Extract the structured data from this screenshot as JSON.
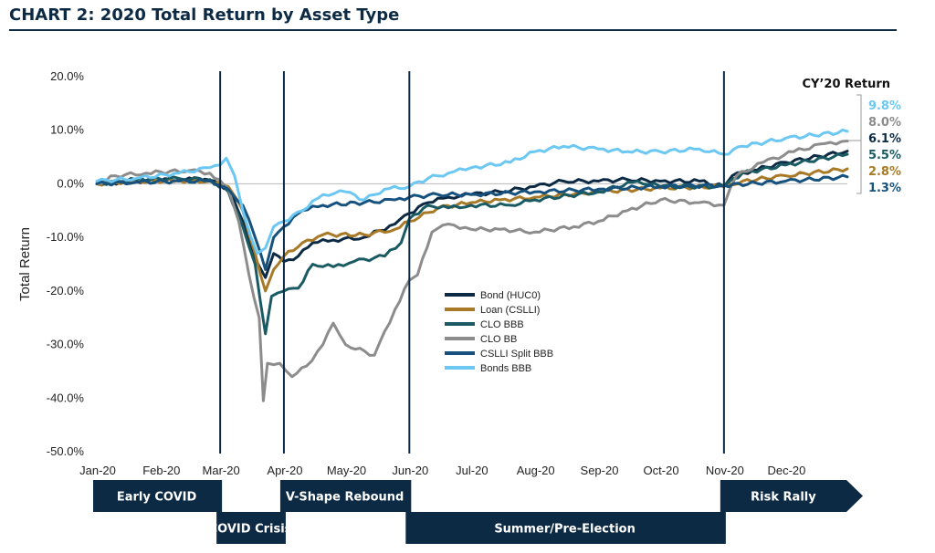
{
  "title": "CHART 2: 2020 Total Return by Asset Type",
  "chart_data": {
    "type": "line",
    "ylabel": "Total Return",
    "ylim": [
      -50,
      20
    ],
    "y_ticks": [
      "20.0%",
      "10.0%",
      "0.0%",
      "-10.0%",
      "-20.0%",
      "-30.0%",
      "-40.0%",
      "-50.0%"
    ],
    "x_ticks": [
      "Jan-20",
      "Feb-20",
      "Mar-20",
      "Apr-20",
      "May-20",
      "Jun-20",
      "Jul-20",
      "Aug-20",
      "Sep-20",
      "Oct-20",
      "Nov-20",
      "Dec-20"
    ],
    "x_label_dates": [
      "2020-01-01",
      "2020-02-01",
      "2020-03-01",
      "2020-04-01",
      "2020-05-01",
      "2020-06-01",
      "2020-07-01",
      "2020-08-01",
      "2020-09-01",
      "2020-10-01",
      "2020-11-01",
      "2020-12-01"
    ],
    "xlim": [
      "2020-01-01",
      "2020-12-31"
    ],
    "phase_dividers": [
      "2020-03-01",
      "2020-04-01",
      "2020-06-01",
      "2020-11-01"
    ],
    "legend_position": "center",
    "cy_header": "CY’20 Return",
    "series": [
      {
        "name": "Bond (HUC0)",
        "color": "#0d2a44",
        "cy_return": "6.1%",
        "points": [
          [
            "2020-01-01",
            0.0
          ],
          [
            "2020-01-20",
            0.5
          ],
          [
            "2020-02-10",
            0.8
          ],
          [
            "2020-02-25",
            0.7
          ],
          [
            "2020-03-05",
            -1.0
          ],
          [
            "2020-03-12",
            -7.0
          ],
          [
            "2020-03-18",
            -14.0
          ],
          [
            "2020-03-23",
            -17.5
          ],
          [
            "2020-03-27",
            -13.0
          ],
          [
            "2020-04-01",
            -14.5
          ],
          [
            "2020-04-08",
            -13.5
          ],
          [
            "2020-04-15",
            -11.0
          ],
          [
            "2020-04-25",
            -10.5
          ],
          [
            "2020-05-10",
            -10.0
          ],
          [
            "2020-05-25",
            -7.5
          ],
          [
            "2020-06-01",
            -5.5
          ],
          [
            "2020-06-10",
            -3.5
          ],
          [
            "2020-06-20",
            -2.5
          ],
          [
            "2020-07-01",
            -2.0
          ],
          [
            "2020-07-15",
            -1.5
          ],
          [
            "2020-08-01",
            -0.5
          ],
          [
            "2020-08-15",
            0.5
          ],
          [
            "2020-09-01",
            0.5
          ],
          [
            "2020-09-15",
            0.8
          ],
          [
            "2020-10-01",
            0.5
          ],
          [
            "2020-10-20",
            0.5
          ],
          [
            "2020-11-01",
            -0.5
          ],
          [
            "2020-11-05",
            1.5
          ],
          [
            "2020-11-15",
            2.5
          ],
          [
            "2020-12-01",
            4.0
          ],
          [
            "2020-12-31",
            6.1
          ]
        ]
      },
      {
        "name": "Loan (CSLLI)",
        "color": "#a87a28",
        "cy_return": "2.8%",
        "points": [
          [
            "2020-01-01",
            0.0
          ],
          [
            "2020-01-20",
            0.5
          ],
          [
            "2020-02-10",
            0.6
          ],
          [
            "2020-02-25",
            0.5
          ],
          [
            "2020-03-05",
            -0.5
          ],
          [
            "2020-03-12",
            -5.0
          ],
          [
            "2020-03-18",
            -13.0
          ],
          [
            "2020-03-23",
            -20.0
          ],
          [
            "2020-03-27",
            -16.0
          ],
          [
            "2020-04-01",
            -13.5
          ],
          [
            "2020-04-10",
            -11.0
          ],
          [
            "2020-04-20",
            -9.5
          ],
          [
            "2020-05-10",
            -9.5
          ],
          [
            "2020-05-25",
            -8.5
          ],
          [
            "2020-06-01",
            -7.0
          ],
          [
            "2020-06-15",
            -4.5
          ],
          [
            "2020-07-01",
            -3.5
          ],
          [
            "2020-07-15",
            -3.0
          ],
          [
            "2020-08-01",
            -2.5
          ],
          [
            "2020-09-01",
            -1.5
          ],
          [
            "2020-10-01",
            -0.8
          ],
          [
            "2020-11-01",
            -0.5
          ],
          [
            "2020-11-10",
            0.5
          ],
          [
            "2020-12-01",
            1.5
          ],
          [
            "2020-12-31",
            2.8
          ]
        ]
      },
      {
        "name": "CLO BBB",
        "color": "#1a5b63",
        "cy_return": "5.5%",
        "points": [
          [
            "2020-01-01",
            0.0
          ],
          [
            "2020-01-20",
            0.8
          ],
          [
            "2020-02-10",
            1.0
          ],
          [
            "2020-02-25",
            0.8
          ],
          [
            "2020-03-05",
            -1.5
          ],
          [
            "2020-03-12",
            -8.0
          ],
          [
            "2020-03-18",
            -15.0
          ],
          [
            "2020-03-23",
            -28.0
          ],
          [
            "2020-03-26",
            -21.0
          ],
          [
            "2020-04-01",
            -20.0
          ],
          [
            "2020-04-08",
            -19.5
          ],
          [
            "2020-04-15",
            -15.0
          ],
          [
            "2020-04-25",
            -15.5
          ],
          [
            "2020-05-05",
            -14.5
          ],
          [
            "2020-05-20",
            -13.5
          ],
          [
            "2020-05-28",
            -11.0
          ],
          [
            "2020-06-01",
            -6.5
          ],
          [
            "2020-06-10",
            -4.0
          ],
          [
            "2020-06-20",
            -4.5
          ],
          [
            "2020-07-01",
            -4.0
          ],
          [
            "2020-07-20",
            -4.0
          ],
          [
            "2020-08-01",
            -3.0
          ],
          [
            "2020-09-01",
            -1.5
          ],
          [
            "2020-09-20",
            0.5
          ],
          [
            "2020-10-01",
            -0.5
          ],
          [
            "2020-11-01",
            -0.5
          ],
          [
            "2020-11-10",
            2.0
          ],
          [
            "2020-12-01",
            3.5
          ],
          [
            "2020-12-31",
            5.5
          ]
        ]
      },
      {
        "name": "CLO BB",
        "color": "#8c8c8c",
        "cy_return": "8.0%",
        "points": [
          [
            "2020-01-01",
            0.0
          ],
          [
            "2020-01-10",
            1.5
          ],
          [
            "2020-01-25",
            2.0
          ],
          [
            "2020-02-15",
            2.5
          ],
          [
            "2020-02-25",
            2.0
          ],
          [
            "2020-03-05",
            -1.0
          ],
          [
            "2020-03-10",
            -7.0
          ],
          [
            "2020-03-15",
            -17.0
          ],
          [
            "2020-03-20",
            -25.0
          ],
          [
            "2020-03-22",
            -40.5
          ],
          [
            "2020-03-24",
            -33.5
          ],
          [
            "2020-03-30",
            -33.5
          ],
          [
            "2020-04-05",
            -36.0
          ],
          [
            "2020-04-12",
            -34.0
          ],
          [
            "2020-04-20",
            -30.0
          ],
          [
            "2020-04-25",
            -26.0
          ],
          [
            "2020-05-01",
            -30.0
          ],
          [
            "2020-05-15",
            -32.0
          ],
          [
            "2020-05-25",
            -23.5
          ],
          [
            "2020-06-01",
            -18.0
          ],
          [
            "2020-06-05",
            -17.0
          ],
          [
            "2020-06-12",
            -9.0
          ],
          [
            "2020-06-20",
            -7.5
          ],
          [
            "2020-07-01",
            -8.5
          ],
          [
            "2020-07-15",
            -8.5
          ],
          [
            "2020-08-01",
            -9.0
          ],
          [
            "2020-08-20",
            -8.0
          ],
          [
            "2020-09-01",
            -7.0
          ],
          [
            "2020-09-15",
            -5.0
          ],
          [
            "2020-10-01",
            -3.0
          ],
          [
            "2020-10-20",
            -3.5
          ],
          [
            "2020-11-01",
            -4.0
          ],
          [
            "2020-11-07",
            1.5
          ],
          [
            "2020-11-20",
            4.0
          ],
          [
            "2020-12-05",
            6.0
          ],
          [
            "2020-12-20",
            7.5
          ],
          [
            "2020-12-31",
            8.0
          ]
        ]
      },
      {
        "name": "CSLLI Split BBB",
        "color": "#17527e",
        "cy_return": "1.3%",
        "points": [
          [
            "2020-01-01",
            0.0
          ],
          [
            "2020-01-20",
            0.3
          ],
          [
            "2020-02-10",
            0.5
          ],
          [
            "2020-02-25",
            0.5
          ],
          [
            "2020-03-05",
            -1.0
          ],
          [
            "2020-03-12",
            -4.0
          ],
          [
            "2020-03-18",
            -10.0
          ],
          [
            "2020-03-23",
            -16.0
          ],
          [
            "2020-03-27",
            -10.0
          ],
          [
            "2020-04-01",
            -8.0
          ],
          [
            "2020-04-10",
            -5.0
          ],
          [
            "2020-04-20",
            -4.0
          ],
          [
            "2020-05-10",
            -3.5
          ],
          [
            "2020-05-25",
            -3.0
          ],
          [
            "2020-06-01",
            -2.5
          ],
          [
            "2020-06-15",
            -2.0
          ],
          [
            "2020-07-01",
            -2.0
          ],
          [
            "2020-08-01",
            -1.5
          ],
          [
            "2020-09-01",
            -1.0
          ],
          [
            "2020-10-01",
            -0.5
          ],
          [
            "2020-11-01",
            -0.3
          ],
          [
            "2020-12-01",
            0.5
          ],
          [
            "2020-12-31",
            1.3
          ]
        ]
      },
      {
        "name": "Bonds BBB",
        "color": "#6cc8f2",
        "cy_return": "9.8%",
        "points": [
          [
            "2020-01-01",
            0.5
          ],
          [
            "2020-01-20",
            1.0
          ],
          [
            "2020-02-10",
            2.0
          ],
          [
            "2020-02-25",
            3.0
          ],
          [
            "2020-03-01",
            3.5
          ],
          [
            "2020-03-04",
            4.8
          ],
          [
            "2020-03-08",
            1.5
          ],
          [
            "2020-03-12",
            -5.0
          ],
          [
            "2020-03-16",
            -10.0
          ],
          [
            "2020-03-19",
            -13.0
          ],
          [
            "2020-03-23",
            -12.0
          ],
          [
            "2020-03-27",
            -8.0
          ],
          [
            "2020-04-01",
            -7.0
          ],
          [
            "2020-04-10",
            -5.0
          ],
          [
            "2020-04-20",
            -2.0
          ],
          [
            "2020-05-01",
            -1.5
          ],
          [
            "2020-05-10",
            -3.0
          ],
          [
            "2020-05-20",
            -1.0
          ],
          [
            "2020-06-01",
            -0.5
          ],
          [
            "2020-06-10",
            1.0
          ],
          [
            "2020-06-20",
            2.0
          ],
          [
            "2020-07-01",
            3.0
          ],
          [
            "2020-07-20",
            4.0
          ],
          [
            "2020-08-01",
            6.0
          ],
          [
            "2020-08-15",
            7.0
          ],
          [
            "2020-09-01",
            6.5
          ],
          [
            "2020-09-15",
            6.0
          ],
          [
            "2020-10-01",
            6.0
          ],
          [
            "2020-10-20",
            6.5
          ],
          [
            "2020-11-01",
            5.5
          ],
          [
            "2020-11-10",
            7.0
          ],
          [
            "2020-12-01",
            8.5
          ],
          [
            "2020-12-31",
            9.8
          ]
        ]
      }
    ],
    "phases": [
      {
        "label": "Early COVID",
        "start": "2020-01-01",
        "end": "2020-03-01",
        "row": "top"
      },
      {
        "label": "COVID Crisis",
        "start": "2020-03-01",
        "end": "2020-04-01",
        "row": "bottom"
      },
      {
        "label": "V-Shape Rebound",
        "start": "2020-04-01",
        "end": "2020-06-01",
        "row": "top"
      },
      {
        "label": "Summer/Pre-Election",
        "start": "2020-06-01",
        "end": "2020-11-01",
        "row": "bottom"
      },
      {
        "label": "Risk Rally",
        "start": "2020-11-01",
        "end": "2020-12-31",
        "row": "top",
        "arrow": true
      }
    ],
    "cy_return_order": [
      "Bonds BBB",
      "CLO BB",
      "Bond (HUC0)",
      "CLO BBB",
      "Loan (CSLLI)",
      "CSLLI Split BBB"
    ]
  }
}
